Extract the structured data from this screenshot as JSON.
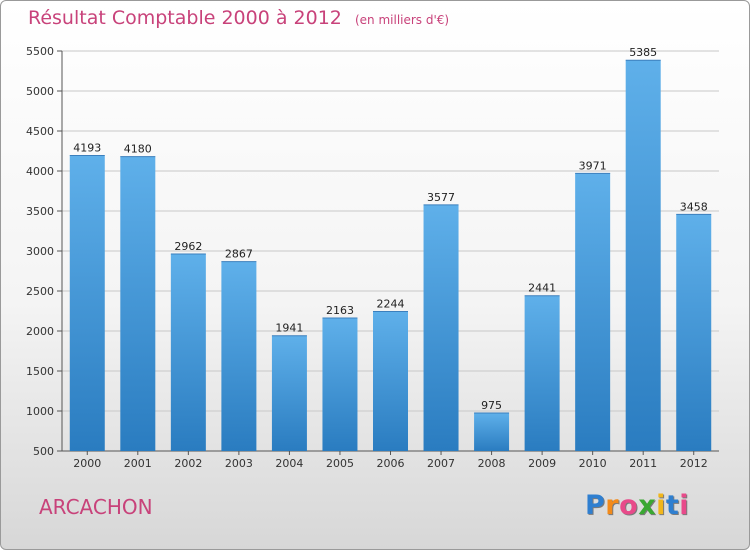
{
  "title": "Résultat Comptable 2000 à 2012",
  "subtitle": "(en milliers d'€)",
  "place": "ARCACHON",
  "logo": {
    "letters": [
      "P",
      "r",
      "o",
      "x",
      "i",
      "t",
      "i"
    ],
    "colors": [
      "#2f7fd0",
      "#f28a1a",
      "#e84a8a",
      "#3aa832",
      "#f2b61a",
      "#2f7fd0",
      "#e84a8a"
    ]
  },
  "colors": {
    "bar_top": "#5fb0ea",
    "bar_bottom": "#2a7cc0",
    "title": "#c8427a",
    "grid": "#c8c8c8"
  },
  "chart_data": {
    "type": "bar",
    "categories": [
      "2000",
      "2001",
      "2002",
      "2003",
      "2004",
      "2005",
      "2006",
      "2007",
      "2008",
      "2009",
      "2010",
      "2011",
      "2012"
    ],
    "values": [
      4193,
      4180,
      2962,
      2867,
      1941,
      2163,
      2244,
      3577,
      975,
      2441,
      3971,
      5385,
      3458
    ],
    "ylim": [
      500,
      5500
    ],
    "yticks": [
      500,
      1000,
      1500,
      2000,
      2500,
      3000,
      3500,
      4000,
      4500,
      5000,
      5500
    ],
    "grid": true,
    "data_labels": true
  }
}
